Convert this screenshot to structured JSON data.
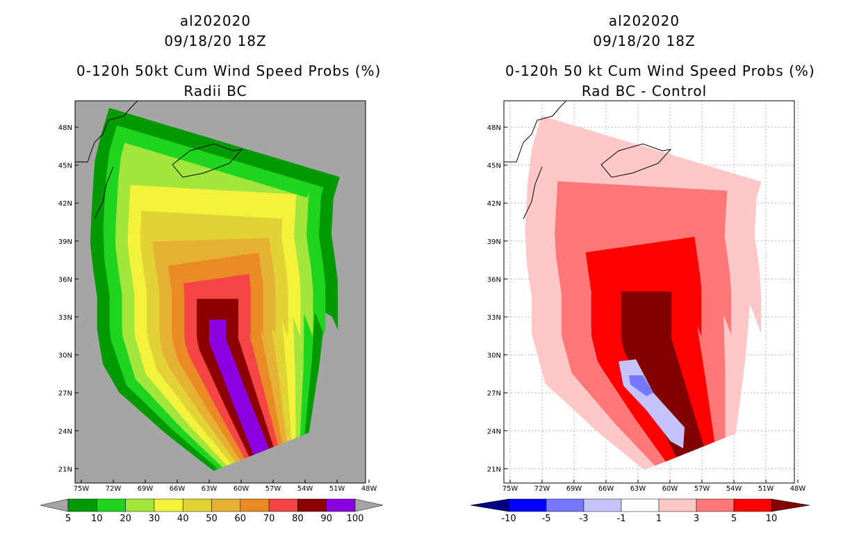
{
  "chart_data": [
    {
      "type": "heatmap",
      "name": "left-panel",
      "title_lines": [
        "al202020",
        "09/18/20 18Z",
        "0-120h 50kt Cum Wind Speed Probs (%)",
        "Radii BC"
      ],
      "xlabel": "",
      "ylabel": "",
      "x_ticks": [
        "75W",
        "72W",
        "69W",
        "66W",
        "63W",
        "60W",
        "57W",
        "54W",
        "51W",
        "48W"
      ],
      "y_ticks": [
        "48N",
        "45N",
        "42N",
        "39N",
        "36N",
        "33N",
        "30N",
        "27N",
        "24N",
        "21N"
      ],
      "xlim": [
        -76,
        -48
      ],
      "ylim": [
        20,
        50
      ],
      "grid": false,
      "colorbar": {
        "levels": [
          "5",
          "10",
          "20",
          "30",
          "40",
          "50",
          "60",
          "70",
          "80",
          "90",
          "100"
        ],
        "colors": [
          "#009a00",
          "#1fd41f",
          "#a2e63d",
          "#f2f23a",
          "#e2d236",
          "#e6b033",
          "#ea8a25",
          "#f44444",
          "#8c0000",
          "#8a00e0"
        ]
      },
      "band_levels": [
        5,
        10,
        20,
        30,
        40,
        50,
        60,
        70,
        80,
        90
      ]
    },
    {
      "type": "heatmap",
      "name": "right-panel",
      "title_lines": [
        "al202020",
        "09/18/20 18Z",
        "0-120h 50 kt Cum Wind Speed Probs (%)",
        "Rad BC - Control"
      ],
      "xlabel": "",
      "ylabel": "",
      "x_ticks": [
        "75W",
        "72W",
        "69W",
        "66W",
        "63W",
        "60W",
        "57W",
        "54W",
        "51W",
        "48W"
      ],
      "y_ticks": [
        "48N",
        "45N",
        "42N",
        "39N",
        "36N",
        "33N",
        "30N",
        "27N",
        "24N",
        "21N"
      ],
      "xlim": [
        -76,
        -48
      ],
      "ylim": [
        20,
        50
      ],
      "grid": true,
      "colorbar": {
        "levels": [
          "-10",
          "-5",
          "-3",
          "-1",
          "1",
          "3",
          "5",
          "10"
        ],
        "colors": [
          "#000080",
          "#0000ff",
          "#7878ff",
          "#c4c4ff",
          "#ffffff",
          "#ffc8c8",
          "#ff7878",
          "#ff0000",
          "#820000"
        ]
      },
      "band_levels": [
        1,
        3,
        5,
        10
      ]
    }
  ]
}
